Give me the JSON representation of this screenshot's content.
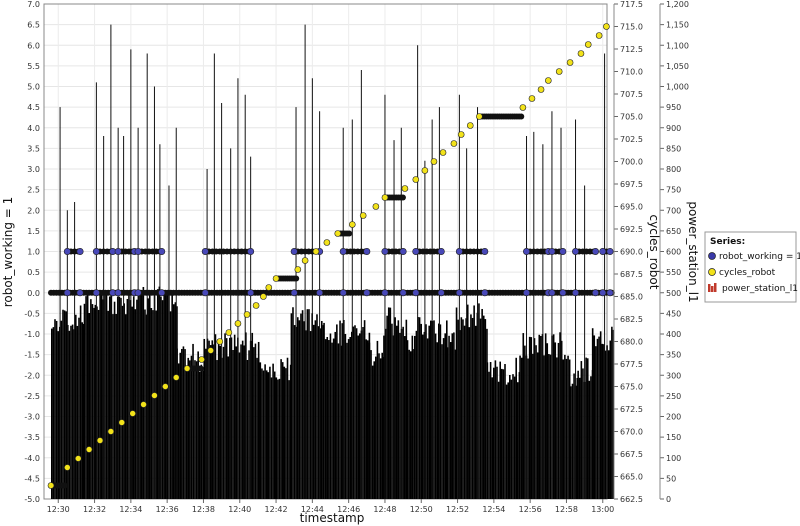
{
  "chart_data": {
    "type": "line",
    "x_axis": {
      "label": "timestamp",
      "ticks": [
        "12:30",
        "12:32",
        "12:34",
        "12:36",
        "12:38",
        "12:40",
        "12:42",
        "12:44",
        "12:46",
        "12:48",
        "12:50",
        "12:52",
        "12:54",
        "12:56",
        "12:58",
        "13:00"
      ]
    },
    "y_left": {
      "label": "robot_working = 1",
      "ylim": [
        -5.0,
        7.0
      ],
      "ticks": [
        "7.0",
        "6.5",
        "6.0",
        "5.5",
        "5.0",
        "4.5",
        "4.0",
        "3.5",
        "3.0",
        "2.5",
        "2.0",
        "1.5",
        "1.0",
        "0.5",
        "0.0",
        "-0.5",
        "-1.0",
        "-1.5",
        "-2.0",
        "-2.5",
        "-3.0",
        "-3.5",
        "-4.0",
        "-4.5",
        "-5.0"
      ]
    },
    "y_right_1": {
      "label": "cycles_robot",
      "ylim": [
        662.5,
        717.5
      ],
      "ticks": [
        "717.5",
        "715.0",
        "712.5",
        "710.0",
        "707.5",
        "705.0",
        "702.5",
        "700.0",
        "697.5",
        "695.0",
        "692.5",
        "690.0",
        "687.5",
        "685.0",
        "682.5",
        "680.0",
        "677.5",
        "675.0",
        "672.5",
        "670.0",
        "667.5",
        "665.0",
        "662.5"
      ]
    },
    "y_right_2": {
      "label": "power_station_l1",
      "ylim": [
        0,
        1200
      ],
      "ticks": [
        "1,200",
        "1,150",
        "1,100",
        "1,050",
        "1,000",
        "950",
        "900",
        "850",
        "800",
        "750",
        "700",
        "650",
        "600",
        "550",
        "500",
        "450",
        "400",
        "350",
        "300",
        "250",
        "200",
        "150",
        "100",
        "50",
        "0"
      ]
    },
    "legend": {
      "title": "Series:",
      "position": "right",
      "items": [
        {
          "name": "robot_working = 1",
          "color": "#3a3aa8",
          "marker": "circle"
        },
        {
          "name": "cycles_robot",
          "color": "#f2e21a",
          "marker": "circle"
        },
        {
          "name": "power_station_l1",
          "color": "#c0392b",
          "marker": "bar"
        }
      ]
    },
    "series": [
      {
        "name": "robot_working = 1",
        "axis": "left",
        "type": "points",
        "working_intervals_min": [
          [
            0.9,
            1.6
          ],
          [
            2.5,
            3.4
          ],
          [
            3.7,
            4.6
          ],
          [
            4.8,
            6.1
          ],
          [
            8.5,
            11.0
          ],
          [
            13.4,
            14.8
          ],
          [
            16.1,
            17.4
          ],
          [
            18.4,
            19.4
          ],
          [
            20.1,
            21.5
          ],
          [
            22.5,
            23.9
          ],
          [
            26.2,
            27.4
          ],
          [
            27.6,
            28.2
          ],
          [
            28.9,
            30.0
          ],
          [
            30.4,
            30.8
          ]
        ],
        "idle_value": 0,
        "working_value": 1
      },
      {
        "name": "cycles_robot",
        "axis": "right_1",
        "type": "points",
        "points": [
          [
            0,
            664
          ],
          [
            0.9,
            666
          ],
          [
            1.5,
            667
          ],
          [
            2.1,
            668
          ],
          [
            2.7,
            669
          ],
          [
            3.3,
            670
          ],
          [
            3.9,
            671
          ],
          [
            4.5,
            672
          ],
          [
            5.1,
            673
          ],
          [
            5.7,
            674
          ],
          [
            6.3,
            675
          ],
          [
            6.9,
            676
          ],
          [
            7.5,
            677
          ],
          [
            8.3,
            678
          ],
          [
            8.8,
            679
          ],
          [
            9.3,
            680
          ],
          [
            9.8,
            681
          ],
          [
            10.3,
            682
          ],
          [
            10.8,
            683
          ],
          [
            11.3,
            684
          ],
          [
            11.7,
            685
          ],
          [
            12.0,
            686
          ],
          [
            12.4,
            687
          ],
          [
            13.6,
            688
          ],
          [
            14.0,
            689
          ],
          [
            14.6,
            690
          ],
          [
            15.2,
            691
          ],
          [
            15.8,
            692
          ],
          [
            16.6,
            693
          ],
          [
            17.2,
            694
          ],
          [
            17.9,
            695
          ],
          [
            18.4,
            696
          ],
          [
            19.5,
            697
          ],
          [
            20.1,
            698
          ],
          [
            20.6,
            699
          ],
          [
            21.1,
            700
          ],
          [
            21.6,
            701
          ],
          [
            22.2,
            702
          ],
          [
            22.6,
            703
          ],
          [
            23.1,
            704
          ],
          [
            23.6,
            705
          ],
          [
            26.0,
            706
          ],
          [
            26.5,
            707
          ],
          [
            27.0,
            708
          ],
          [
            27.4,
            709
          ],
          [
            28.0,
            710
          ],
          [
            28.6,
            711
          ],
          [
            29.2,
            712
          ],
          [
            29.6,
            713
          ],
          [
            30.2,
            714
          ],
          [
            30.6,
            715
          ]
        ]
      },
      {
        "name": "power_station_l1",
        "axis": "right_2",
        "type": "bar",
        "spikes_min": [
          [
            0.5,
            950
          ],
          [
            0.9,
            700
          ],
          [
            1.3,
            720
          ],
          [
            2.5,
            1010
          ],
          [
            2.9,
            880
          ],
          [
            3.3,
            1150
          ],
          [
            3.7,
            900
          ],
          [
            4.0,
            880
          ],
          [
            4.4,
            1090
          ],
          [
            4.8,
            900
          ],
          [
            5.3,
            1080
          ],
          [
            5.7,
            1000
          ],
          [
            6.0,
            860
          ],
          [
            6.5,
            760
          ],
          [
            6.9,
            900
          ],
          [
            8.6,
            800
          ],
          [
            9.0,
            1080
          ],
          [
            9.4,
            960
          ],
          [
            9.9,
            850
          ],
          [
            10.3,
            1020
          ],
          [
            10.7,
            980
          ],
          [
            11.0,
            830
          ],
          [
            13.5,
            950
          ],
          [
            14.0,
            1150
          ],
          [
            14.4,
            1020
          ],
          [
            14.8,
            940
          ],
          [
            16.1,
            900
          ],
          [
            16.6,
            920
          ],
          [
            17.1,
            1040
          ],
          [
            18.4,
            980
          ],
          [
            18.9,
            870
          ],
          [
            19.3,
            900
          ],
          [
            20.2,
            1100
          ],
          [
            20.6,
            820
          ],
          [
            21.0,
            920
          ],
          [
            21.4,
            950
          ],
          [
            22.5,
            980
          ],
          [
            22.9,
            850
          ],
          [
            23.5,
            950
          ],
          [
            26.2,
            880
          ],
          [
            26.6,
            890
          ],
          [
            27.1,
            860
          ],
          [
            27.6,
            940
          ],
          [
            28.1,
            900
          ],
          [
            28.9,
            920
          ],
          [
            29.4,
            760
          ],
          [
            30.5,
            1080
          ]
        ],
        "baseline_segments_min": [
          [
            0.0,
            1.8,
            440
          ],
          [
            1.8,
            2.4,
            470
          ],
          [
            2.4,
            6.9,
            480
          ],
          [
            6.9,
            7.8,
            345
          ],
          [
            7.8,
            8.4,
            330
          ],
          [
            8.4,
            11.4,
            370
          ],
          [
            11.4,
            13.2,
            320
          ],
          [
            13.2,
            15.0,
            430
          ],
          [
            15.0,
            16.0,
            400
          ],
          [
            16.0,
            17.5,
            410
          ],
          [
            17.5,
            18.3,
            350
          ],
          [
            18.3,
            19.6,
            430
          ],
          [
            19.6,
            20.0,
            390
          ],
          [
            20.0,
            21.8,
            410
          ],
          [
            21.8,
            22.3,
            370
          ],
          [
            22.3,
            24.0,
            440
          ],
          [
            24.0,
            25.8,
            310
          ],
          [
            25.8,
            28.6,
            370
          ],
          [
            28.6,
            29.0,
            300
          ],
          [
            29.0,
            29.8,
            310
          ],
          [
            29.8,
            31.0,
            390
          ]
        ]
      }
    ]
  }
}
